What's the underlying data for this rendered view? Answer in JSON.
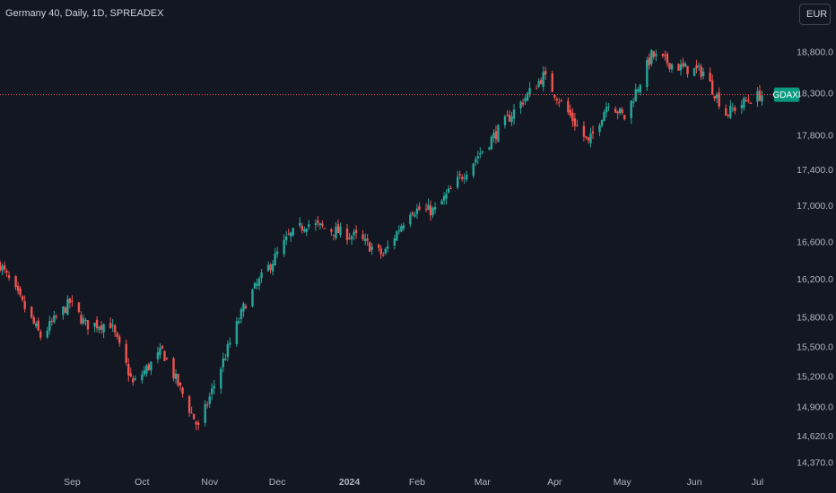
{
  "header": {
    "title": "Germany 40, Daily, 1D, SPREADEX",
    "currency_button": "EUR"
  },
  "colors": {
    "background": "#131722",
    "up": "#26a69a",
    "down": "#ef5350",
    "price_line": "#ef5350",
    "axis_text": "#b2b5be",
    "symbol_badge": "#089981"
  },
  "chart_data": {
    "type": "candlestick",
    "symbol": "Germany 40",
    "interval": "1D",
    "source": "SPREADEX",
    "currency": "EUR",
    "y_axis": {
      "scale": "log",
      "ticks": [
        "14,370.0",
        "14,620.0",
        "14,900.0",
        "15,200.0",
        "15,500.0",
        "15,800.0",
        "16,200.0",
        "16,600.0",
        "17,000.0",
        "17,400.0",
        "17,800.0",
        "18,300.0",
        "18,800.0"
      ],
      "tick_values": [
        14370,
        14620,
        14900,
        15200,
        15500,
        15800,
        16200,
        16600,
        17000,
        17400,
        17800,
        18300,
        18800
      ],
      "range": [
        14330,
        19330
      ]
    },
    "x_axis": {
      "labels": [
        "Sep",
        "Oct",
        "Nov",
        "Dec",
        "2024",
        "Feb",
        "Mar",
        "Apr",
        "May",
        "Jun",
        "Jul"
      ],
      "label_dates": [
        "2023-09-01",
        "2023-10-02",
        "2023-11-01",
        "2023-12-01",
        "2024-01-02",
        "2024-02-01",
        "2024-03-01",
        "2024-04-02",
        "2024-05-02",
        "2024-06-03",
        "2024-07-01"
      ]
    },
    "last_price": 18275,
    "last_price_label": "GDAXI",
    "key_levels": [
      {
        "date": "2023-07-31",
        "close": 16350
      },
      {
        "date": "2023-08-18",
        "close": 15600
      },
      {
        "date": "2023-08-31",
        "close": 15950
      },
      {
        "date": "2023-09-07",
        "close": 15720
      },
      {
        "date": "2023-09-18",
        "close": 15730
      },
      {
        "date": "2023-09-28",
        "close": 15120
      },
      {
        "date": "2023-10-11",
        "close": 15450
      },
      {
        "date": "2023-10-27",
        "close": 14690
      },
      {
        "date": "2023-11-17",
        "close": 15950
      },
      {
        "date": "2023-12-06",
        "close": 16650
      },
      {
        "date": "2023-12-14",
        "close": 16800
      },
      {
        "date": "2024-01-05",
        "close": 16650
      },
      {
        "date": "2024-01-17",
        "close": 16450
      },
      {
        "date": "2024-01-29",
        "close": 16950
      },
      {
        "date": "2024-02-09",
        "close": 16940
      },
      {
        "date": "2024-02-23",
        "close": 17400
      },
      {
        "date": "2024-03-08",
        "close": 17850
      },
      {
        "date": "2024-03-28",
        "close": 18500
      },
      {
        "date": "2024-04-17",
        "close": 17700
      },
      {
        "date": "2024-04-26",
        "close": 18200
      },
      {
        "date": "2024-05-03",
        "close": 18000
      },
      {
        "date": "2024-05-15",
        "close": 18750
      },
      {
        "date": "2024-05-28",
        "close": 18600
      },
      {
        "date": "2024-06-07",
        "close": 18550
      },
      {
        "date": "2024-06-17",
        "close": 18050
      },
      {
        "date": "2024-06-28",
        "close": 18230
      },
      {
        "date": "2024-07-03",
        "close": 18275
      }
    ]
  }
}
